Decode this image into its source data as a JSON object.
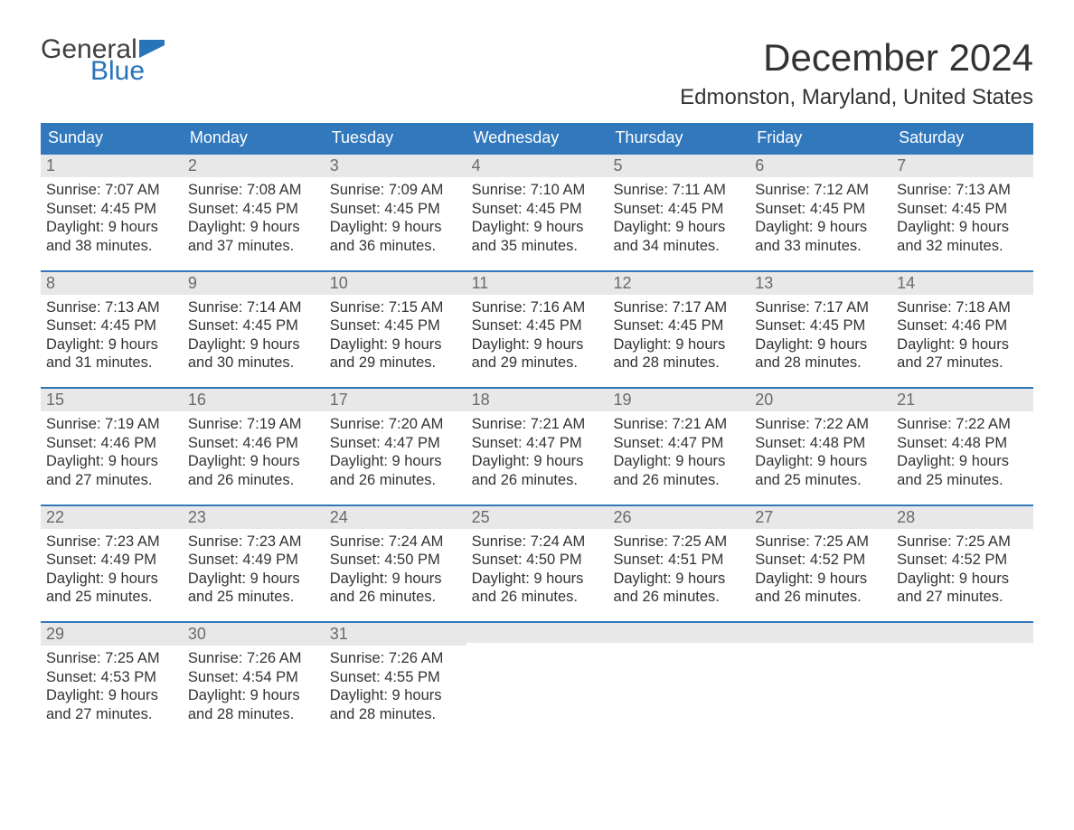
{
  "logo": {
    "word1": "General",
    "word2": "Blue",
    "flag_color": "#2874b8",
    "text1_color": "#404040",
    "text2_color": "#2874b8"
  },
  "title": "December 2024",
  "location": "Edmonston, Maryland, United States",
  "colors": {
    "header_bg": "#3178bd",
    "header_text": "#ffffff",
    "daynum_bg": "#e8e8e8",
    "daynum_text": "#6a6a6a",
    "body_text": "#333333",
    "week_border": "#3178bd",
    "page_bg": "#ffffff"
  },
  "typography": {
    "title_fontsize": 42,
    "location_fontsize": 24,
    "dow_fontsize": 18,
    "daynum_fontsize": 18,
    "body_fontsize": 16.5
  },
  "days_of_week": [
    "Sunday",
    "Monday",
    "Tuesday",
    "Wednesday",
    "Thursday",
    "Friday",
    "Saturday"
  ],
  "weeks": [
    [
      {
        "num": "1",
        "sunrise": "Sunrise: 7:07 AM",
        "sunset": "Sunset: 4:45 PM",
        "daylight1": "Daylight: 9 hours",
        "daylight2": "and 38 minutes."
      },
      {
        "num": "2",
        "sunrise": "Sunrise: 7:08 AM",
        "sunset": "Sunset: 4:45 PM",
        "daylight1": "Daylight: 9 hours",
        "daylight2": "and 37 minutes."
      },
      {
        "num": "3",
        "sunrise": "Sunrise: 7:09 AM",
        "sunset": "Sunset: 4:45 PM",
        "daylight1": "Daylight: 9 hours",
        "daylight2": "and 36 minutes."
      },
      {
        "num": "4",
        "sunrise": "Sunrise: 7:10 AM",
        "sunset": "Sunset: 4:45 PM",
        "daylight1": "Daylight: 9 hours",
        "daylight2": "and 35 minutes."
      },
      {
        "num": "5",
        "sunrise": "Sunrise: 7:11 AM",
        "sunset": "Sunset: 4:45 PM",
        "daylight1": "Daylight: 9 hours",
        "daylight2": "and 34 minutes."
      },
      {
        "num": "6",
        "sunrise": "Sunrise: 7:12 AM",
        "sunset": "Sunset: 4:45 PM",
        "daylight1": "Daylight: 9 hours",
        "daylight2": "and 33 minutes."
      },
      {
        "num": "7",
        "sunrise": "Sunrise: 7:13 AM",
        "sunset": "Sunset: 4:45 PM",
        "daylight1": "Daylight: 9 hours",
        "daylight2": "and 32 minutes."
      }
    ],
    [
      {
        "num": "8",
        "sunrise": "Sunrise: 7:13 AM",
        "sunset": "Sunset: 4:45 PM",
        "daylight1": "Daylight: 9 hours",
        "daylight2": "and 31 minutes."
      },
      {
        "num": "9",
        "sunrise": "Sunrise: 7:14 AM",
        "sunset": "Sunset: 4:45 PM",
        "daylight1": "Daylight: 9 hours",
        "daylight2": "and 30 minutes."
      },
      {
        "num": "10",
        "sunrise": "Sunrise: 7:15 AM",
        "sunset": "Sunset: 4:45 PM",
        "daylight1": "Daylight: 9 hours",
        "daylight2": "and 29 minutes."
      },
      {
        "num": "11",
        "sunrise": "Sunrise: 7:16 AM",
        "sunset": "Sunset: 4:45 PM",
        "daylight1": "Daylight: 9 hours",
        "daylight2": "and 29 minutes."
      },
      {
        "num": "12",
        "sunrise": "Sunrise: 7:17 AM",
        "sunset": "Sunset: 4:45 PM",
        "daylight1": "Daylight: 9 hours",
        "daylight2": "and 28 minutes."
      },
      {
        "num": "13",
        "sunrise": "Sunrise: 7:17 AM",
        "sunset": "Sunset: 4:45 PM",
        "daylight1": "Daylight: 9 hours",
        "daylight2": "and 28 minutes."
      },
      {
        "num": "14",
        "sunrise": "Sunrise: 7:18 AM",
        "sunset": "Sunset: 4:46 PM",
        "daylight1": "Daylight: 9 hours",
        "daylight2": "and 27 minutes."
      }
    ],
    [
      {
        "num": "15",
        "sunrise": "Sunrise: 7:19 AM",
        "sunset": "Sunset: 4:46 PM",
        "daylight1": "Daylight: 9 hours",
        "daylight2": "and 27 minutes."
      },
      {
        "num": "16",
        "sunrise": "Sunrise: 7:19 AM",
        "sunset": "Sunset: 4:46 PM",
        "daylight1": "Daylight: 9 hours",
        "daylight2": "and 26 minutes."
      },
      {
        "num": "17",
        "sunrise": "Sunrise: 7:20 AM",
        "sunset": "Sunset: 4:47 PM",
        "daylight1": "Daylight: 9 hours",
        "daylight2": "and 26 minutes."
      },
      {
        "num": "18",
        "sunrise": "Sunrise: 7:21 AM",
        "sunset": "Sunset: 4:47 PM",
        "daylight1": "Daylight: 9 hours",
        "daylight2": "and 26 minutes."
      },
      {
        "num": "19",
        "sunrise": "Sunrise: 7:21 AM",
        "sunset": "Sunset: 4:47 PM",
        "daylight1": "Daylight: 9 hours",
        "daylight2": "and 26 minutes."
      },
      {
        "num": "20",
        "sunrise": "Sunrise: 7:22 AM",
        "sunset": "Sunset: 4:48 PM",
        "daylight1": "Daylight: 9 hours",
        "daylight2": "and 25 minutes."
      },
      {
        "num": "21",
        "sunrise": "Sunrise: 7:22 AM",
        "sunset": "Sunset: 4:48 PM",
        "daylight1": "Daylight: 9 hours",
        "daylight2": "and 25 minutes."
      }
    ],
    [
      {
        "num": "22",
        "sunrise": "Sunrise: 7:23 AM",
        "sunset": "Sunset: 4:49 PM",
        "daylight1": "Daylight: 9 hours",
        "daylight2": "and 25 minutes."
      },
      {
        "num": "23",
        "sunrise": "Sunrise: 7:23 AM",
        "sunset": "Sunset: 4:49 PM",
        "daylight1": "Daylight: 9 hours",
        "daylight2": "and 25 minutes."
      },
      {
        "num": "24",
        "sunrise": "Sunrise: 7:24 AM",
        "sunset": "Sunset: 4:50 PM",
        "daylight1": "Daylight: 9 hours",
        "daylight2": "and 26 minutes."
      },
      {
        "num": "25",
        "sunrise": "Sunrise: 7:24 AM",
        "sunset": "Sunset: 4:50 PM",
        "daylight1": "Daylight: 9 hours",
        "daylight2": "and 26 minutes."
      },
      {
        "num": "26",
        "sunrise": "Sunrise: 7:25 AM",
        "sunset": "Sunset: 4:51 PM",
        "daylight1": "Daylight: 9 hours",
        "daylight2": "and 26 minutes."
      },
      {
        "num": "27",
        "sunrise": "Sunrise: 7:25 AM",
        "sunset": "Sunset: 4:52 PM",
        "daylight1": "Daylight: 9 hours",
        "daylight2": "and 26 minutes."
      },
      {
        "num": "28",
        "sunrise": "Sunrise: 7:25 AM",
        "sunset": "Sunset: 4:52 PM",
        "daylight1": "Daylight: 9 hours",
        "daylight2": "and 27 minutes."
      }
    ],
    [
      {
        "num": "29",
        "sunrise": "Sunrise: 7:25 AM",
        "sunset": "Sunset: 4:53 PM",
        "daylight1": "Daylight: 9 hours",
        "daylight2": "and 27 minutes."
      },
      {
        "num": "30",
        "sunrise": "Sunrise: 7:26 AM",
        "sunset": "Sunset: 4:54 PM",
        "daylight1": "Daylight: 9 hours",
        "daylight2": "and 28 minutes."
      },
      {
        "num": "31",
        "sunrise": "Sunrise: 7:26 AM",
        "sunset": "Sunset: 4:55 PM",
        "daylight1": "Daylight: 9 hours",
        "daylight2": "and 28 minutes."
      },
      null,
      null,
      null,
      null
    ]
  ]
}
